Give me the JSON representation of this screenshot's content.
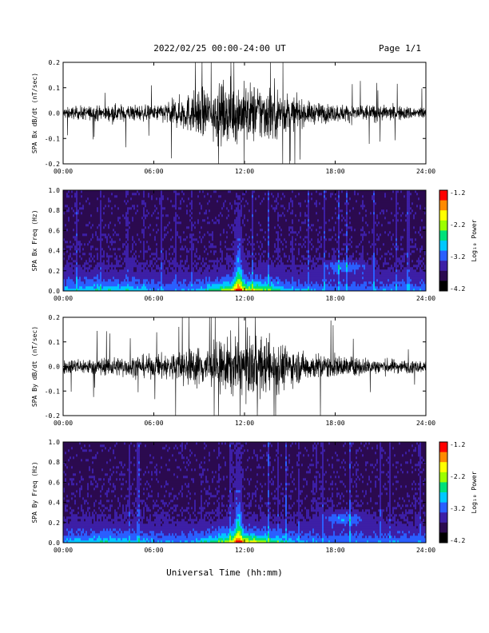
{
  "header": {
    "title": "2022/02/25  00:00-24:00 UT",
    "page": "Page 1/1"
  },
  "xlabel": "Universal Time (hh:mm)",
  "colors": {
    "trace": "#000000",
    "colormap": [
      "#000000",
      "#2b0a4f",
      "#3d1fa6",
      "#2a5fff",
      "#00c8ff",
      "#00e07a",
      "#9cff00",
      "#ffff00",
      "#ff8a00",
      "#ff0000"
    ]
  },
  "chart_data": [
    {
      "id": "bx",
      "type": "line",
      "ylabel": "SPA Bx dB/dt (nT/sec)",
      "xticks": [
        "00:00",
        "06:00",
        "12:00",
        "18:00",
        "24:00"
      ],
      "yticks": [
        "0.2",
        "0.1",
        "0.0",
        "-0.1",
        "-0.2"
      ],
      "x_hours": [
        0,
        24
      ],
      "ylim": [
        -0.2,
        0.2
      ],
      "envelope": {
        "x_hours": [
          0,
          2,
          4,
          6,
          7,
          8,
          9,
          10,
          11,
          12,
          13,
          14,
          15,
          16,
          18,
          20,
          22,
          24
        ],
        "amplitude": [
          0.04,
          0.05,
          0.06,
          0.05,
          0.08,
          0.12,
          0.16,
          0.18,
          0.2,
          0.2,
          0.2,
          0.19,
          0.12,
          0.08,
          0.06,
          0.06,
          0.05,
          0.04
        ]
      }
    },
    {
      "id": "bx-spec",
      "type": "heatmap",
      "ylabel": "SPA Bx Freq (Hz)",
      "xticks": [
        "00:00",
        "06:00",
        "12:00",
        "18:00",
        "24:00"
      ],
      "yticks": [
        "1.0",
        "0.8",
        "0.6",
        "0.4",
        "0.2",
        "0.0"
      ],
      "x_hours": [
        0,
        24
      ],
      "ylim": [
        0,
        1.0
      ],
      "colorbar": {
        "label": "Log₁₀ Power",
        "ticks": [
          "-1.2",
          "-2.2",
          "-3.2",
          "-4.2"
        ],
        "range": [
          -4.2,
          -1.2
        ]
      }
    },
    {
      "id": "by",
      "type": "line",
      "ylabel": "SPA By dB/dt (nT/sec)",
      "xticks": [
        "00:00",
        "06:00",
        "12:00",
        "18:00",
        "24:00"
      ],
      "yticks": [
        "0.2",
        "0.1",
        "0.0",
        "-0.1",
        "-0.2"
      ],
      "x_hours": [
        0,
        24
      ],
      "ylim": [
        -0.2,
        0.2
      ],
      "envelope": {
        "x_hours": [
          0,
          2,
          4,
          6,
          7,
          8,
          9,
          10,
          11,
          12,
          13,
          14,
          15,
          16,
          18,
          20,
          22,
          24
        ],
        "amplitude": [
          0.05,
          0.06,
          0.07,
          0.08,
          0.1,
          0.12,
          0.14,
          0.16,
          0.2,
          0.2,
          0.2,
          0.19,
          0.13,
          0.1,
          0.08,
          0.06,
          0.05,
          0.04
        ]
      }
    },
    {
      "id": "by-spec",
      "type": "heatmap",
      "ylabel": "SPA By Freq (Hz)",
      "xticks": [
        "00:00",
        "06:00",
        "12:00",
        "18:00",
        "24:00"
      ],
      "yticks": [
        "1.0",
        "0.8",
        "0.6",
        "0.4",
        "0.2",
        "0.0"
      ],
      "x_hours": [
        0,
        24
      ],
      "ylim": [
        0,
        1.0
      ],
      "colorbar": {
        "label": "Log₁₀ Power",
        "ticks": [
          "-1.2",
          "-2.2",
          "-3.2",
          "-4.2"
        ],
        "range": [
          -4.2,
          -1.2
        ]
      }
    }
  ]
}
